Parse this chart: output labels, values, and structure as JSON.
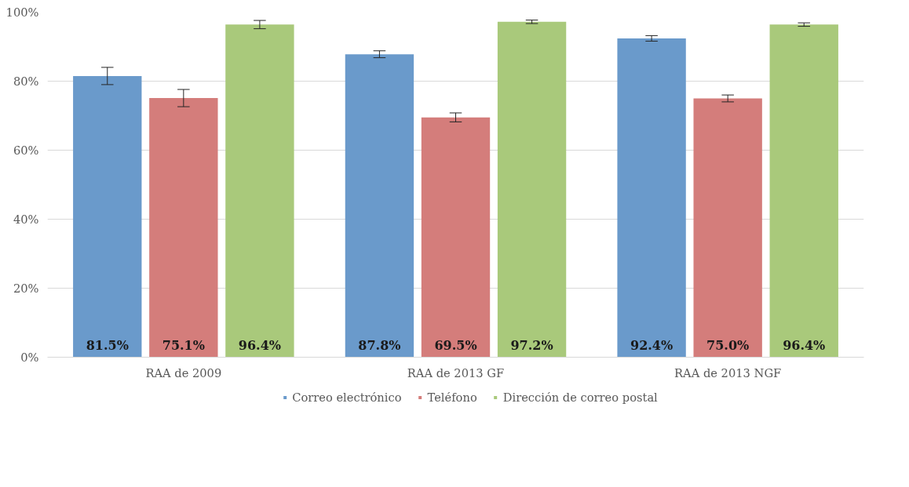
{
  "chart_data": {
    "type": "bar",
    "categories": [
      "RAA de 2009",
      "RAA de 2013 GF",
      "RAA de 2013 NGF"
    ],
    "series": [
      {
        "name": "Correo electrónico",
        "color": "#6a9acb",
        "values": [
          81.5,
          87.8,
          92.4
        ],
        "errors": [
          2.5,
          1.0,
          0.8
        ],
        "value_labels": [
          "81.5%",
          "87.8%",
          "92.4%"
        ]
      },
      {
        "name": "Teléfono",
        "color": "#d47d7b",
        "values": [
          75.1,
          69.5,
          75.0
        ],
        "errors": [
          2.5,
          1.3,
          1.0
        ],
        "value_labels": [
          "75.1%",
          "69.5%",
          "75.0%"
        ]
      },
      {
        "name": "Dirección de correo postal",
        "color": "#a9c97b",
        "values": [
          96.4,
          97.2,
          96.4
        ],
        "errors": [
          1.2,
          0.5,
          0.5
        ],
        "value_labels": [
          "96.4%",
          "97.2%",
          "96.4%"
        ]
      }
    ],
    "ylim": [
      0,
      100
    ],
    "yticks": [
      {
        "value": 0,
        "label": "0%"
      },
      {
        "value": 20,
        "label": "20%"
      },
      {
        "value": 40,
        "label": "40%"
      },
      {
        "value": 60,
        "label": "60%"
      },
      {
        "value": 80,
        "label": "80%"
      },
      {
        "value": 100,
        "label": "100%"
      }
    ],
    "grid": "y",
    "legend": "bottom"
  }
}
